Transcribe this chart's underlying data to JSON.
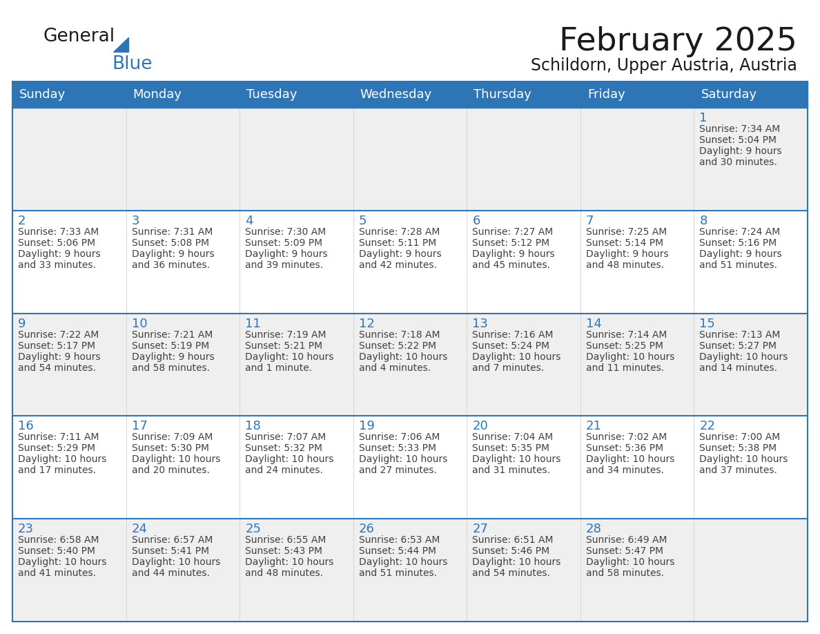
{
  "title": "February 2025",
  "subtitle": "Schildorn, Upper Austria, Austria",
  "header_bg": "#2E75B6",
  "header_text_color": "#FFFFFF",
  "row_bg_odd": "#EFEFEF",
  "row_bg_even": "#FFFFFF",
  "day_number_color": "#2E75B6",
  "cell_text_color": "#404040",
  "grid_line_color": "#2E75B6",
  "separator_color": "#CCCCCC",
  "days_of_week": [
    "Sunday",
    "Monday",
    "Tuesday",
    "Wednesday",
    "Thursday",
    "Friday",
    "Saturday"
  ],
  "calendar_data": [
    [
      null,
      null,
      null,
      null,
      null,
      null,
      {
        "day": 1,
        "sunrise": "7:34 AM",
        "sunset": "5:04 PM",
        "daylight": "9 hours\nand 30 minutes."
      }
    ],
    [
      {
        "day": 2,
        "sunrise": "7:33 AM",
        "sunset": "5:06 PM",
        "daylight": "9 hours\nand 33 minutes."
      },
      {
        "day": 3,
        "sunrise": "7:31 AM",
        "sunset": "5:08 PM",
        "daylight": "9 hours\nand 36 minutes."
      },
      {
        "day": 4,
        "sunrise": "7:30 AM",
        "sunset": "5:09 PM",
        "daylight": "9 hours\nand 39 minutes."
      },
      {
        "day": 5,
        "sunrise": "7:28 AM",
        "sunset": "5:11 PM",
        "daylight": "9 hours\nand 42 minutes."
      },
      {
        "day": 6,
        "sunrise": "7:27 AM",
        "sunset": "5:12 PM",
        "daylight": "9 hours\nand 45 minutes."
      },
      {
        "day": 7,
        "sunrise": "7:25 AM",
        "sunset": "5:14 PM",
        "daylight": "9 hours\nand 48 minutes."
      },
      {
        "day": 8,
        "sunrise": "7:24 AM",
        "sunset": "5:16 PM",
        "daylight": "9 hours\nand 51 minutes."
      }
    ],
    [
      {
        "day": 9,
        "sunrise": "7:22 AM",
        "sunset": "5:17 PM",
        "daylight": "9 hours\nand 54 minutes."
      },
      {
        "day": 10,
        "sunrise": "7:21 AM",
        "sunset": "5:19 PM",
        "daylight": "9 hours\nand 58 minutes."
      },
      {
        "day": 11,
        "sunrise": "7:19 AM",
        "sunset": "5:21 PM",
        "daylight": "10 hours\nand 1 minute."
      },
      {
        "day": 12,
        "sunrise": "7:18 AM",
        "sunset": "5:22 PM",
        "daylight": "10 hours\nand 4 minutes."
      },
      {
        "day": 13,
        "sunrise": "7:16 AM",
        "sunset": "5:24 PM",
        "daylight": "10 hours\nand 7 minutes."
      },
      {
        "day": 14,
        "sunrise": "7:14 AM",
        "sunset": "5:25 PM",
        "daylight": "10 hours\nand 11 minutes."
      },
      {
        "day": 15,
        "sunrise": "7:13 AM",
        "sunset": "5:27 PM",
        "daylight": "10 hours\nand 14 minutes."
      }
    ],
    [
      {
        "day": 16,
        "sunrise": "7:11 AM",
        "sunset": "5:29 PM",
        "daylight": "10 hours\nand 17 minutes."
      },
      {
        "day": 17,
        "sunrise": "7:09 AM",
        "sunset": "5:30 PM",
        "daylight": "10 hours\nand 20 minutes."
      },
      {
        "day": 18,
        "sunrise": "7:07 AM",
        "sunset": "5:32 PM",
        "daylight": "10 hours\nand 24 minutes."
      },
      {
        "day": 19,
        "sunrise": "7:06 AM",
        "sunset": "5:33 PM",
        "daylight": "10 hours\nand 27 minutes."
      },
      {
        "day": 20,
        "sunrise": "7:04 AM",
        "sunset": "5:35 PM",
        "daylight": "10 hours\nand 31 minutes."
      },
      {
        "day": 21,
        "sunrise": "7:02 AM",
        "sunset": "5:36 PM",
        "daylight": "10 hours\nand 34 minutes."
      },
      {
        "day": 22,
        "sunrise": "7:00 AM",
        "sunset": "5:38 PM",
        "daylight": "10 hours\nand 37 minutes."
      }
    ],
    [
      {
        "day": 23,
        "sunrise": "6:58 AM",
        "sunset": "5:40 PM",
        "daylight": "10 hours\nand 41 minutes."
      },
      {
        "day": 24,
        "sunrise": "6:57 AM",
        "sunset": "5:41 PM",
        "daylight": "10 hours\nand 44 minutes."
      },
      {
        "day": 25,
        "sunrise": "6:55 AM",
        "sunset": "5:43 PM",
        "daylight": "10 hours\nand 48 minutes."
      },
      {
        "day": 26,
        "sunrise": "6:53 AM",
        "sunset": "5:44 PM",
        "daylight": "10 hours\nand 51 minutes."
      },
      {
        "day": 27,
        "sunrise": "6:51 AM",
        "sunset": "5:46 PM",
        "daylight": "10 hours\nand 54 minutes."
      },
      {
        "day": 28,
        "sunrise": "6:49 AM",
        "sunset": "5:47 PM",
        "daylight": "10 hours\nand 58 minutes."
      },
      null
    ]
  ],
  "logo_text_general": "General",
  "logo_text_blue": "Blue",
  "logo_color_general": "#1a1a1a",
  "logo_color_blue": "#2E75B6",
  "title_fontsize": 34,
  "subtitle_fontsize": 17,
  "header_fontsize": 13,
  "day_num_fontsize": 13,
  "cell_fontsize": 10
}
